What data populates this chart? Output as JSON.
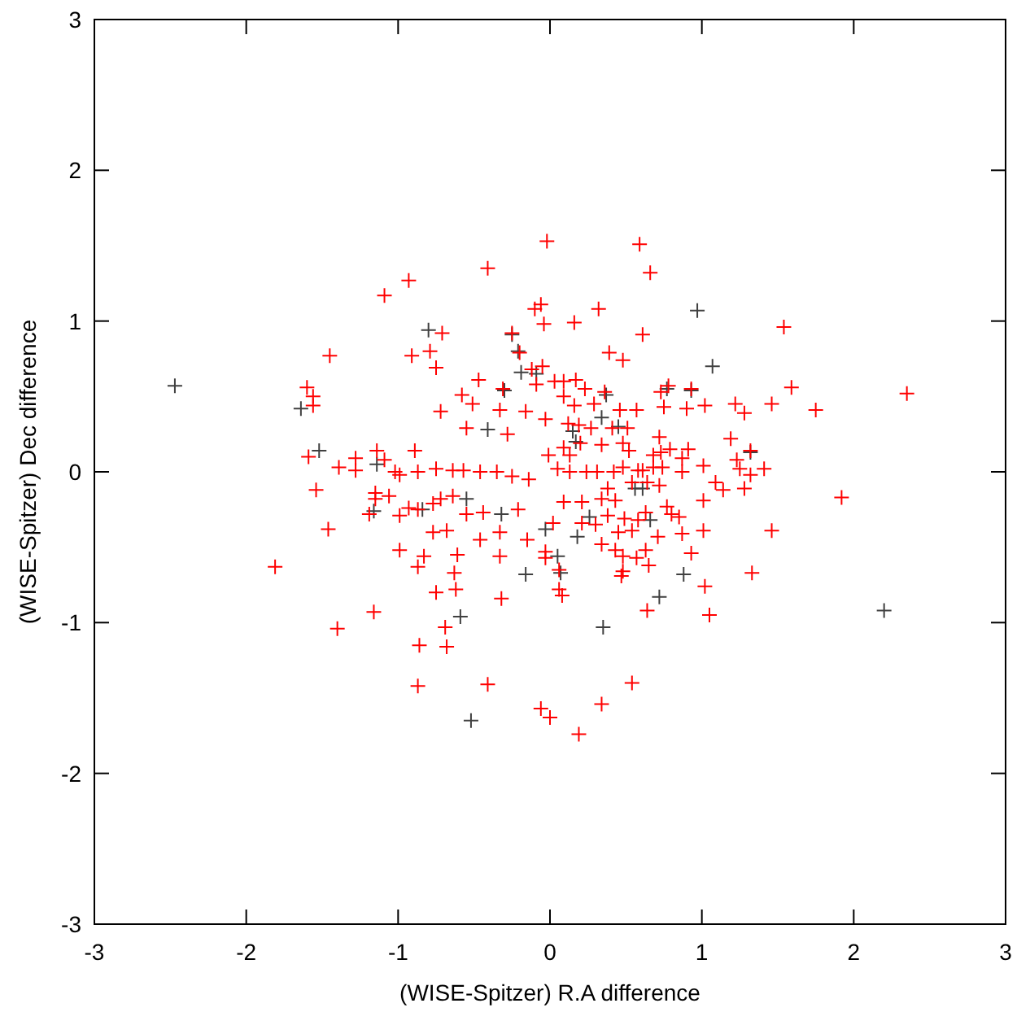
{
  "chart_data": {
    "type": "scatter",
    "xlabel": "(WISE-Spitzer) R.A difference",
    "ylabel": "(WISE-Spitzer) Dec difference",
    "xlim": [
      -3,
      3
    ],
    "ylim": [
      -3,
      3
    ],
    "xticks": [
      -3,
      -2,
      -1,
      0,
      1,
      2,
      3
    ],
    "yticks": [
      -3,
      -2,
      -1,
      0,
      1,
      2,
      3
    ],
    "grid": false,
    "marker": "cross",
    "series": [
      {
        "color": "#404040",
        "x": [
          -2.47,
          2.2,
          1.07,
          0.97,
          -0.59,
          0.35,
          0.72,
          0.88,
          1.32,
          -1.64,
          -1.52,
          -0.8,
          0.77,
          0.93,
          -0.19,
          -0.09,
          -0.21,
          -0.25,
          -0.16,
          -0.32,
          0.07,
          -1.16,
          -0.84,
          -1.14,
          -0.41,
          -0.3,
          0.26,
          0.37,
          0.66,
          0.61,
          0.34,
          0.17,
          -0.03,
          0.15,
          -0.55,
          0.18,
          0.05,
          0.45,
          0.56,
          -0.52
        ],
        "values": [
          0.57,
          -0.92,
          0.7,
          1.07,
          -0.96,
          -1.03,
          -0.83,
          -0.68,
          0.13,
          0.42,
          0.14,
          0.94,
          0.55,
          0.54,
          0.66,
          0.65,
          0.8,
          0.91,
          -0.68,
          -0.28,
          -0.67,
          -0.26,
          -0.25,
          0.05,
          0.28,
          0.54,
          -0.3,
          0.51,
          -0.32,
          -0.11,
          0.36,
          0.2,
          -0.38,
          0.27,
          -0.18,
          -0.43,
          -0.56,
          0.3,
          -0.11,
          -1.65
        ]
      },
      {
        "color": "#ff0000",
        "x": [
          -0.02,
          0.59,
          0.66,
          -0.41,
          -0.93,
          -1.09,
          -0.06,
          -0.1,
          0.32,
          1.54,
          -0.71,
          -0.25,
          -0.04,
          0.16,
          0.61,
          -1.45,
          -1.6,
          -1.56,
          -1.56,
          -0.91,
          -0.79,
          -0.75,
          -0.47,
          -0.31,
          -0.2,
          -0.12,
          -0.09,
          -0.58,
          -0.51,
          -0.72,
          -0.33,
          -0.55,
          -0.28,
          -0.16,
          -1.59,
          -1.39,
          -1.28,
          -1.28,
          -1.14,
          -0.89,
          -1.09,
          -1.02,
          -0.99,
          -0.87,
          -0.75,
          -0.64,
          -0.57,
          -0.46,
          -0.35,
          -0.25,
          -0.14,
          -1.54,
          -1.15,
          -1.15,
          -1.06,
          -1.19,
          -0.99,
          -0.93,
          -0.87,
          -0.77,
          -0.72,
          -0.64,
          -0.55,
          -0.44,
          -0.33,
          -0.21,
          -0.15,
          -1.46,
          -0.77,
          -0.68,
          -0.99,
          -0.87,
          -0.83,
          -0.61,
          -0.46,
          -0.33,
          -0.63,
          -0.62,
          -0.75,
          -1.81,
          -0.32,
          -1.16,
          -0.69,
          -1.4,
          -0.86,
          -0.68,
          0.39,
          0.48,
          1.59,
          2.35,
          1.46,
          1.75,
          1.22,
          1.28,
          1.02,
          0.9,
          0.75,
          0.93,
          0.78,
          0.73,
          0.57,
          0.46,
          0.36,
          0.29,
          0.23,
          0.17,
          0.09,
          0.03,
          -0.05,
          0.09,
          0.16,
          -0.03,
          0.12,
          0.19,
          0.27,
          0.41,
          0.51,
          0.72,
          0.79,
          0.91,
          1.19,
          1.32,
          1.23,
          1.25,
          1.32,
          1.41,
          0.87,
          0.87,
          1.01,
          1.09,
          1.14,
          1.28,
          1.92,
          1.01,
          0.77,
          0.8,
          0.85,
          0.72,
          0.64,
          0.54,
          0.61,
          0.68,
          0.74,
          0.73,
          0.68,
          1.46,
          1.01,
          0.87,
          0.71,
          0.93,
          0.63,
          0.65,
          0.54,
          0.45,
          0.49,
          0.63,
          0.58,
          1.33,
          1.02,
          0.64,
          1.05,
          0.48,
          0.57,
          0.48,
          0.47,
          0.34,
          0.43,
          0.38,
          0.3,
          0.21,
          0.06,
          0.06,
          0.08,
          -0.03,
          -0.03,
          0.02,
          0.09,
          0.21,
          0.34,
          0.43,
          0.38,
          0.31,
          0.42,
          0.48,
          0.58,
          0.13,
          0.05,
          0.24,
          -0.01,
          0.09,
          0.2,
          0.34,
          0.48,
          0.52,
          0.13,
          -0.87,
          -0.41,
          -0.06,
          0.0,
          0.19,
          0.34,
          0.54
        ],
        "values": [
          1.53,
          1.51,
          1.32,
          1.35,
          1.27,
          1.17,
          1.11,
          1.08,
          1.08,
          0.96,
          0.92,
          0.92,
          0.98,
          0.99,
          0.91,
          0.77,
          0.56,
          0.5,
          0.44,
          0.77,
          0.8,
          0.69,
          0.61,
          0.55,
          0.79,
          0.68,
          0.58,
          0.51,
          0.45,
          0.4,
          0.41,
          0.29,
          0.25,
          0.4,
          0.1,
          0.03,
          0.09,
          0.01,
          0.14,
          0.14,
          0.08,
          0.0,
          -0.02,
          0.0,
          0.02,
          0.01,
          0.01,
          0.0,
          0.0,
          -0.03,
          -0.05,
          -0.12,
          -0.14,
          -0.18,
          -0.16,
          -0.28,
          -0.29,
          -0.24,
          -0.25,
          -0.21,
          -0.18,
          -0.16,
          -0.28,
          -0.27,
          -0.4,
          -0.25,
          -0.45,
          -0.38,
          -0.4,
          -0.39,
          -0.52,
          -0.63,
          -0.56,
          -0.55,
          -0.45,
          -0.56,
          -0.67,
          -0.78,
          -0.8,
          -0.63,
          -0.84,
          -0.93,
          -1.03,
          -1.04,
          -1.15,
          -1.16,
          0.79,
          0.74,
          0.56,
          0.52,
          0.45,
          0.41,
          0.45,
          0.39,
          0.44,
          0.42,
          0.43,
          0.55,
          0.57,
          0.53,
          0.41,
          0.41,
          0.53,
          0.45,
          0.55,
          0.61,
          0.6,
          0.6,
          0.7,
          0.5,
          0.44,
          0.35,
          0.32,
          0.31,
          0.29,
          0.29,
          0.29,
          0.23,
          0.15,
          0.15,
          0.22,
          0.14,
          0.08,
          0.02,
          -0.02,
          0.02,
          0.09,
          0.0,
          0.04,
          -0.07,
          -0.12,
          -0.11,
          -0.17,
          -0.19,
          -0.23,
          -0.28,
          -0.3,
          -0.09,
          -0.07,
          -0.07,
          0.01,
          0.03,
          0.03,
          0.13,
          0.11,
          -0.39,
          -0.39,
          -0.41,
          -0.43,
          -0.54,
          -0.52,
          -0.62,
          -0.39,
          -0.4,
          -0.31,
          -0.27,
          -0.32,
          -0.67,
          -0.76,
          -0.92,
          -0.95,
          -0.56,
          -0.57,
          -0.66,
          -0.69,
          -0.48,
          -0.52,
          -0.29,
          -0.35,
          -0.34,
          -0.65,
          -0.78,
          -0.82,
          -0.57,
          -0.53,
          -0.34,
          -0.2,
          -0.2,
          -0.18,
          -0.19,
          -0.11,
          0.0,
          0.0,
          0.03,
          0.01,
          0.0,
          0.02,
          0.0,
          0.11,
          0.16,
          0.19,
          0.18,
          0.19,
          0.14,
          0.11,
          -1.42,
          -1.41,
          -1.57,
          -1.63,
          -1.74,
          -1.54,
          -1.4
        ]
      }
    ]
  }
}
